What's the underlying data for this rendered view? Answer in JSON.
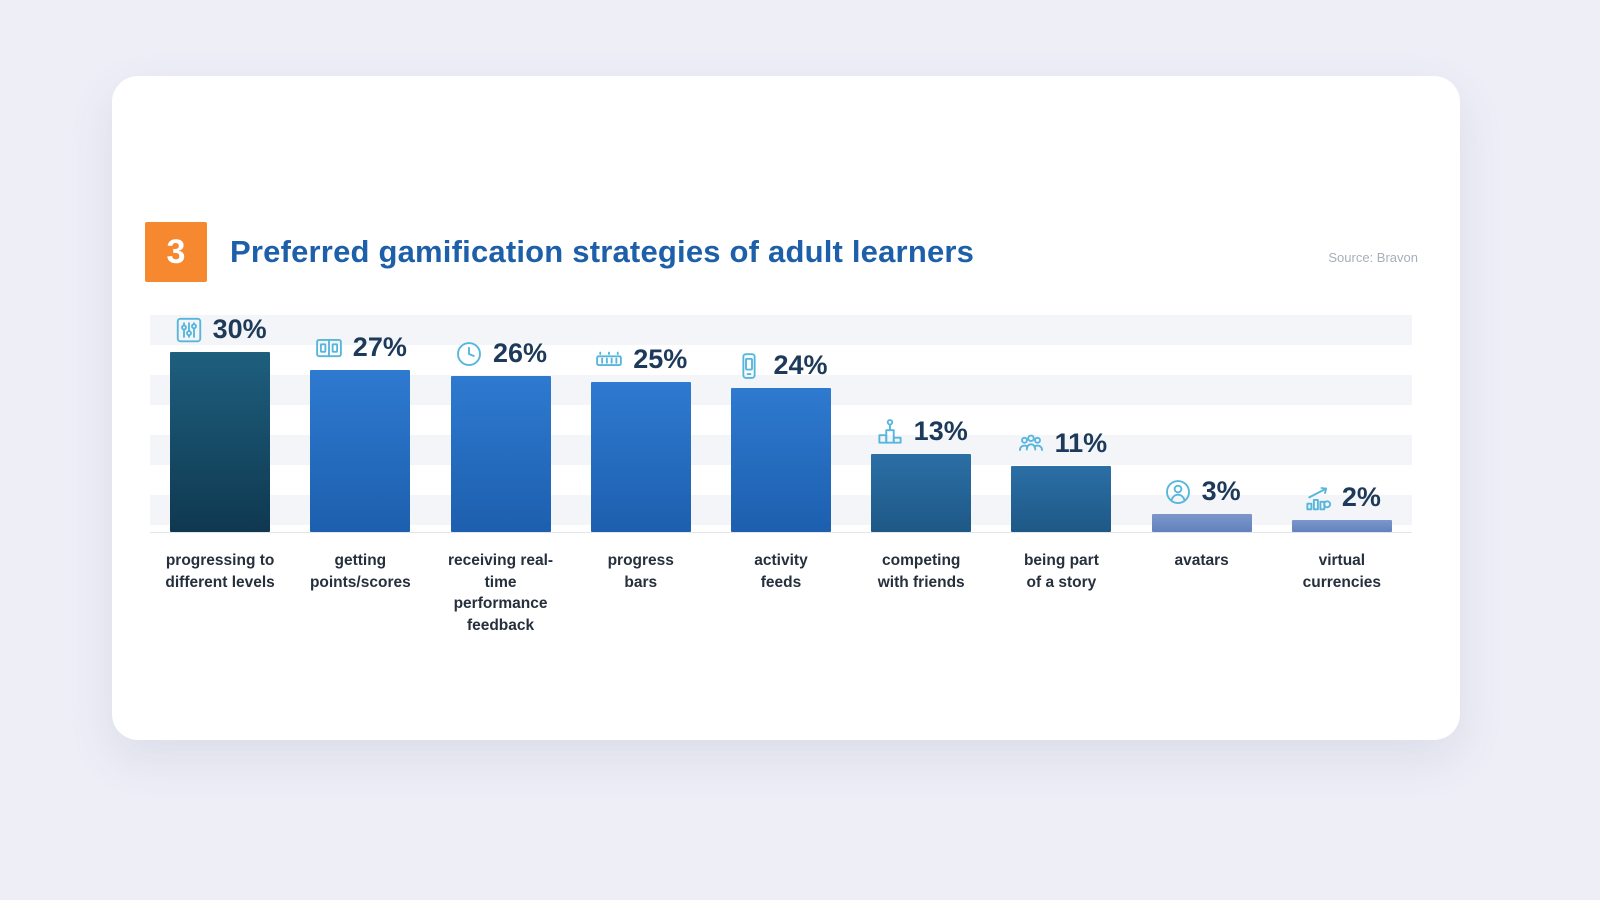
{
  "page": {
    "background_color": "#edeef6"
  },
  "card": {
    "badge": "3",
    "badge_color": "#f6882f",
    "title": "Preferred gamification strategies of adult learners",
    "title_color": "#1d5fa8",
    "source": "Source: Bravon"
  },
  "chart_data": {
    "type": "bar",
    "title": "Preferred gamification strategies of adult learners",
    "source": "Bravon",
    "unit": "%",
    "categories": [
      "progressing to different levels",
      "getting points/scores",
      "receiving real-time performance feedback",
      "progress bars",
      "activity feeds",
      "competing with friends",
      "being part of a story",
      "avatars",
      "virtual currencies"
    ],
    "category_labels": [
      "progressing to\ndifferent levels",
      "getting\npoints/scores",
      "receiving real-time\nperformance\nfeedback",
      "progress\nbars",
      "activity\nfeeds",
      "competing\nwith friends",
      "being part\nof a story",
      "avatars",
      "virtual\ncurrencies"
    ],
    "values": [
      30,
      27,
      26,
      25,
      24,
      13,
      11,
      3,
      2
    ],
    "value_labels": [
      "30%",
      "27%",
      "26%",
      "25%",
      "24%",
      "13%",
      "11%",
      "3%",
      "2%"
    ],
    "icons": [
      "levels-icon",
      "scoreboard-icon",
      "clock-icon",
      "progress-bar-icon",
      "activity-feed-icon",
      "podium-icon",
      "friends-icon",
      "avatar-icon",
      "virtual-currency-icon"
    ],
    "bar_gradients": [
      [
        "#1e5f7e",
        "#0f3850"
      ],
      [
        "#2e7ad0",
        "#1d5fae"
      ],
      [
        "#2e7ad0",
        "#1d5fae"
      ],
      [
        "#2e7ad0",
        "#1d5fae"
      ],
      [
        "#2e7ad0",
        "#1d5fae"
      ],
      [
        "#2b6fa6",
        "#1e5886"
      ],
      [
        "#2b6fa6",
        "#1e5886"
      ],
      [
        "#7d97cc",
        "#6281bd"
      ],
      [
        "#7d97cc",
        "#6281bd"
      ]
    ],
    "icon_color": "#57b6dc",
    "value_label_color": "#1e3a5a",
    "category_label_color": "#26303d",
    "ylim": [
      0,
      32
    ],
    "grid": "horizontal-bands",
    "legend": false
  }
}
